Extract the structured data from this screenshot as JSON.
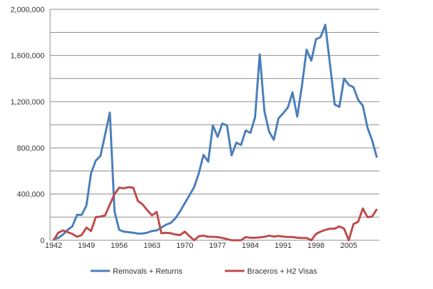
{
  "chart_data": {
    "type": "line",
    "title": "",
    "xlabel": "",
    "ylabel": "",
    "x_start": 1942,
    "x_end": 2011,
    "x_tick_labels": [
      "1942",
      "1949",
      "1956",
      "1963",
      "1970",
      "1977",
      "1984",
      "1991",
      "1998",
      "2005"
    ],
    "y_tick_labels": [
      "0",
      "400,000",
      "800,000",
      "1,200,000",
      "1,600,000",
      "2,000,000"
    ],
    "y_tick_values": [
      0,
      400000,
      800000,
      1200000,
      1600000,
      2000000
    ],
    "ylim": [
      0,
      2000000
    ],
    "grid_step": 200000,
    "grid": true,
    "legend_position": "bottom",
    "series": [
      {
        "name": "Removals + Returns",
        "color": "#4a7ebb",
        "values": [
          11000,
          20000,
          50000,
          90000,
          120000,
          220000,
          220000,
          300000,
          580000,
          690000,
          730000,
          915000,
          1105000,
          250000,
          90000,
          75000,
          70000,
          65000,
          58000,
          58000,
          66000,
          80000,
          85000,
          110000,
          135000,
          150000,
          190000,
          250000,
          320000,
          390000,
          460000,
          580000,
          740000,
          680000,
          995000,
          895000,
          1010000,
          995000,
          735000,
          845000,
          825000,
          950000,
          930000,
          1065000,
          1610000,
          1115000,
          940000,
          870000,
          1055000,
          1100000,
          1150000,
          1280000,
          1070000,
          1335000,
          1650000,
          1555000,
          1740000,
          1760000,
          1865000,
          1520000,
          1175000,
          1155000,
          1400000,
          1345000,
          1325000,
          1215000,
          1165000,
          975000,
          865000,
          715000
        ]
      },
      {
        "name": "Braceros + H2 Visas",
        "color": "#be4b48",
        "values": [
          0,
          65000,
          85000,
          70000,
          55000,
          30000,
          45000,
          110000,
          80000,
          200000,
          205000,
          215000,
          310000,
          400000,
          455000,
          450000,
          460000,
          455000,
          340000,
          310000,
          260000,
          215000,
          245000,
          60000,
          65000,
          60000,
          50000,
          45000,
          75000,
          35000,
          0,
          35000,
          40000,
          30000,
          30000,
          27000,
          20000,
          10000,
          0,
          0,
          0,
          27000,
          22000,
          22000,
          25000,
          30000,
          40000,
          32000,
          37000,
          32000,
          28000,
          28000,
          22000,
          20000,
          20000,
          0,
          55000,
          75000,
          90000,
          100000,
          100000,
          120000,
          100000,
          0,
          140000,
          160000,
          275000,
          200000,
          205000,
          270000
        ]
      }
    ]
  }
}
